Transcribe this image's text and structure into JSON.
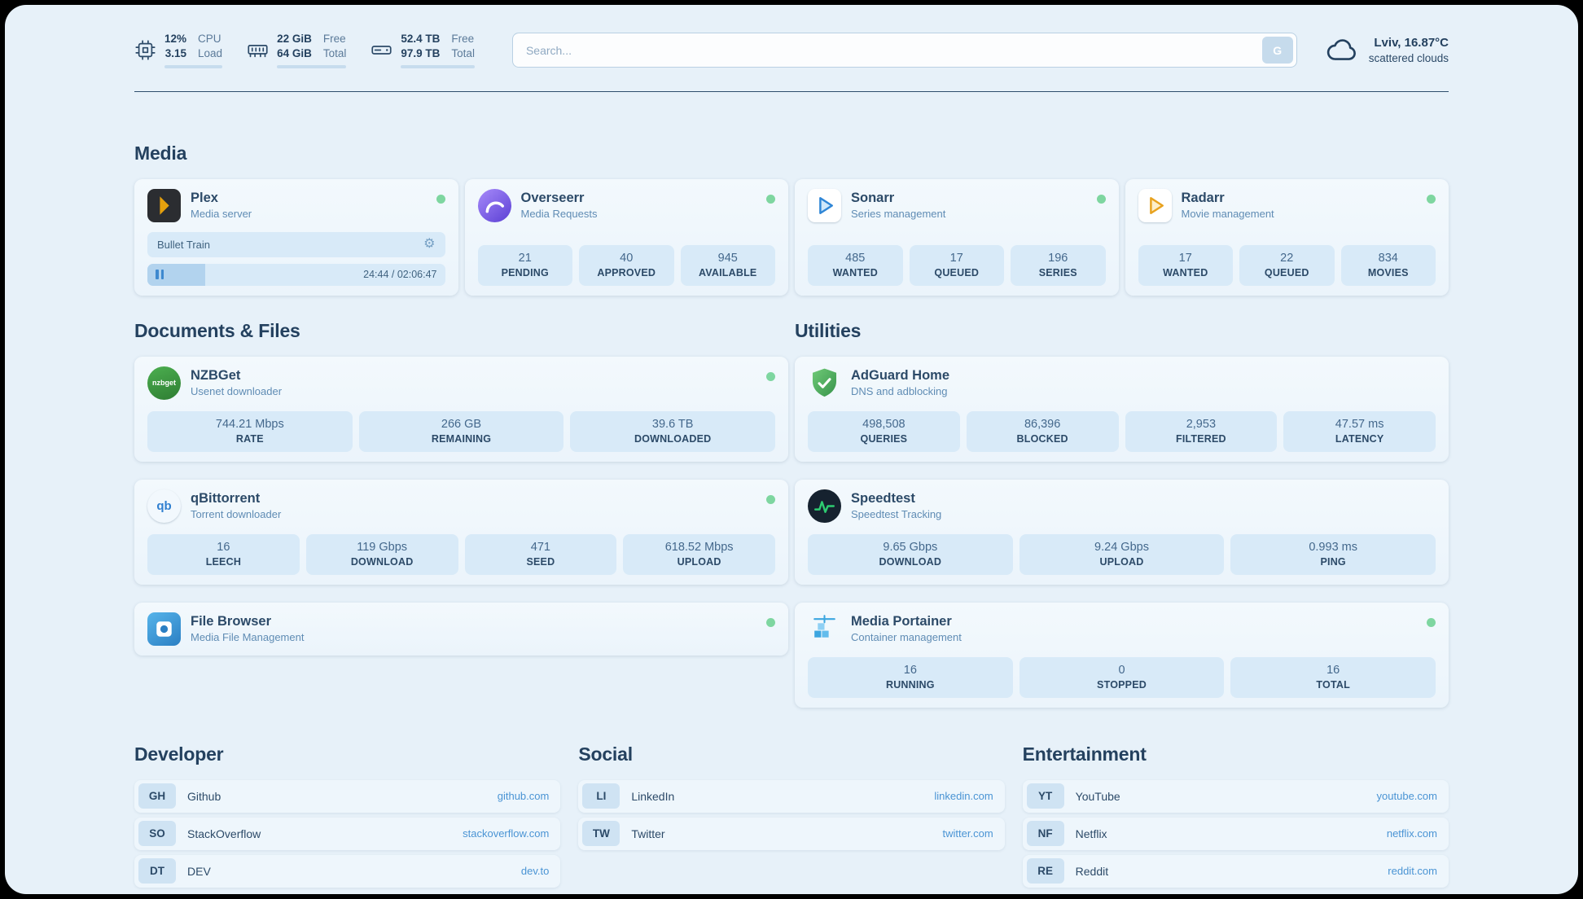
{
  "icons": {
    "gear": "⚙"
  },
  "topbar": {
    "resources": [
      {
        "value1": "12%",
        "label1": "CPU",
        "value2": "3.15",
        "label2": "Load",
        "bar": "12%"
      },
      {
        "value1": "22 GiB",
        "label1": "Free",
        "value2": "64 GiB",
        "label2": "Total",
        "bar": "66%"
      },
      {
        "value1": "52.4 TB",
        "label1": "Free",
        "value2": "97.9 TB",
        "label2": "Total",
        "bar": "46%"
      }
    ],
    "search": {
      "placeholder": "Search...",
      "button": "G"
    },
    "weather": {
      "location": "Lviv, 16.87°C",
      "condition": "scattered clouds"
    }
  },
  "sections": {
    "media": "Media",
    "documents": "Documents & Files",
    "utilities": "Utilities",
    "developer": "Developer",
    "social": "Social",
    "entertainment": "Entertainment"
  },
  "apps": {
    "plex": {
      "name": "Plex",
      "desc": "Media server",
      "now_playing": "Bullet Train",
      "time": "24:44 / 02:06:47",
      "progress": "19.5%"
    },
    "overseerr": {
      "name": "Overseerr",
      "desc": "Media Requests",
      "stats": [
        {
          "value": "21",
          "label": "PENDING"
        },
        {
          "value": "40",
          "label": "APPROVED"
        },
        {
          "value": "945",
          "label": "AVAILABLE"
        }
      ]
    },
    "sonarr": {
      "name": "Sonarr",
      "desc": "Series management",
      "stats": [
        {
          "value": "485",
          "label": "WANTED"
        },
        {
          "value": "17",
          "label": "QUEUED"
        },
        {
          "value": "196",
          "label": "SERIES"
        }
      ]
    },
    "radarr": {
      "name": "Radarr",
      "desc": "Movie management",
      "stats": [
        {
          "value": "17",
          "label": "WANTED"
        },
        {
          "value": "22",
          "label": "QUEUED"
        },
        {
          "value": "834",
          "label": "MOVIES"
        }
      ]
    },
    "nzbget": {
      "name": "NZBGet",
      "desc": "Usenet downloader",
      "icon_text": "nzbget",
      "stats": [
        {
          "value": "744.21 Mbps",
          "label": "RATE"
        },
        {
          "value": "266 GB",
          "label": "REMAINING"
        },
        {
          "value": "39.6 TB",
          "label": "DOWNLOADED"
        }
      ]
    },
    "qbittorrent": {
      "name": "qBittorrent",
      "desc": "Torrent downloader",
      "icon_text": "qb",
      "stats": [
        {
          "value": "16",
          "label": "LEECH"
        },
        {
          "value": "119 Gbps",
          "label": "DOWNLOAD"
        },
        {
          "value": "471",
          "label": "SEED"
        },
        {
          "value": "618.52 Mbps",
          "label": "UPLOAD"
        }
      ]
    },
    "filebrowser": {
      "name": "File Browser",
      "desc": "Media File Management"
    },
    "adguard": {
      "name": "AdGuard Home",
      "desc": "DNS and adblocking",
      "stats": [
        {
          "value": "498,508",
          "label": "QUERIES"
        },
        {
          "value": "86,396",
          "label": "BLOCKED"
        },
        {
          "value": "2,953",
          "label": "FILTERED"
        },
        {
          "value": "47.57 ms",
          "label": "LATENCY"
        }
      ]
    },
    "speedtest": {
      "name": "Speedtest",
      "desc": "Speedtest Tracking",
      "stats": [
        {
          "value": "9.65 Gbps",
          "label": "DOWNLOAD"
        },
        {
          "value": "9.24 Gbps",
          "label": "UPLOAD"
        },
        {
          "value": "0.993 ms",
          "label": "PING"
        }
      ]
    },
    "portainer": {
      "name": "Media Portainer",
      "desc": "Container management",
      "stats": [
        {
          "value": "16",
          "label": "RUNNING"
        },
        {
          "value": "0",
          "label": "STOPPED"
        },
        {
          "value": "16",
          "label": "TOTAL"
        }
      ]
    }
  },
  "bookmarks": {
    "developer": [
      {
        "abbr": "GH",
        "name": "Github",
        "url": "github.com"
      },
      {
        "abbr": "SO",
        "name": "StackOverflow",
        "url": "stackoverflow.com"
      },
      {
        "abbr": "DT",
        "name": "DEV",
        "url": "dev.to"
      }
    ],
    "social": [
      {
        "abbr": "LI",
        "name": "LinkedIn",
        "url": "linkedin.com"
      },
      {
        "abbr": "TW",
        "name": "Twitter",
        "url": "twitter.com"
      }
    ],
    "entertainment": [
      {
        "abbr": "YT",
        "name": "YouTube",
        "url": "youtube.com"
      },
      {
        "abbr": "NF",
        "name": "Netflix",
        "url": "netflix.com"
      },
      {
        "abbr": "RE",
        "name": "Reddit",
        "url": "reddit.com"
      }
    ]
  }
}
